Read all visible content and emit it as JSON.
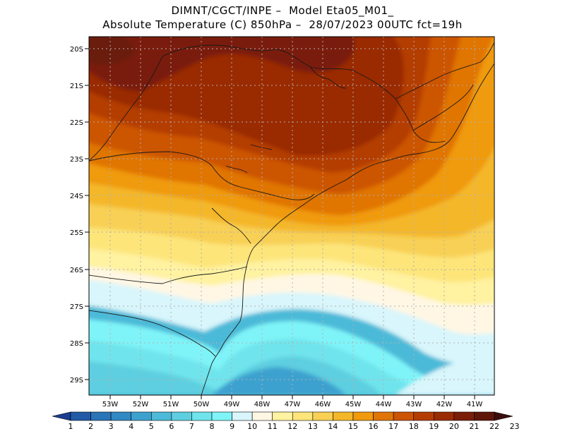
{
  "title_line1": "DIMNT/CGCT/INPE –  Model Eta05_M01_",
  "title_line2": "Absolute Temperature (C) 850hPa –  28/07/2023 00UTC fct=19h",
  "map": {
    "lat_ticks": [
      "20S",
      "21S",
      "22S",
      "23S",
      "24S",
      "25S",
      "26S",
      "27S",
      "28S",
      "29S"
    ],
    "lon_ticks": [
      "53W",
      "52W",
      "51W",
      "50W",
      "49W",
      "48W",
      "47W",
      "46W",
      "45W",
      "44W",
      "43W",
      "42W",
      "41W"
    ]
  },
  "colorbar": {
    "labels": [
      "1",
      "2",
      "3",
      "4",
      "5",
      "6",
      "7",
      "8",
      "9",
      "10",
      "11",
      "12",
      "13",
      "14",
      "15",
      "16",
      "17",
      "18",
      "19",
      "20",
      "21",
      "22",
      "23"
    ],
    "colors": [
      "#1a3d8f",
      "#225aa7",
      "#2a74b8",
      "#3289c3",
      "#3da1cf",
      "#4cbad8",
      "#5dcfe0",
      "#6fe4ec",
      "#7ff4f8",
      "#d8f6fb",
      "#fff7e4",
      "#fff2a0",
      "#fde57a",
      "#f8d054",
      "#f4b72a",
      "#f09a0c",
      "#e07506",
      "#cc5404",
      "#b43c03",
      "#9a2c05",
      "#7a1e08",
      "#5e1609",
      "#3c0d0d"
    ]
  }
}
